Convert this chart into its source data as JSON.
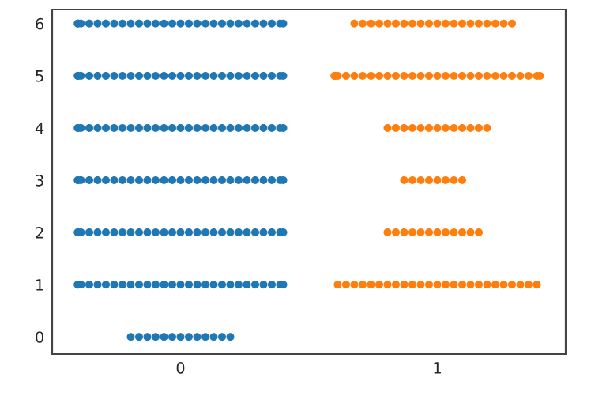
{
  "chart_data": {
    "type": "scatter",
    "categories": [
      "0",
      "1"
    ],
    "series": [
      {
        "color": "#1f77b4",
        "x": [
          "0",
          "0",
          "0",
          "0",
          "0",
          "0",
          "0",
          "0",
          "0",
          "0",
          "0",
          "0",
          "0",
          "0",
          "0",
          "0",
          "0",
          "0",
          "0",
          "0",
          "0",
          "0",
          "0",
          "0",
          "0",
          "0",
          "0",
          "0",
          "0",
          "0",
          "0",
          "0",
          "0",
          "0",
          "0",
          "0",
          "0",
          "0",
          "0",
          "0",
          "0",
          "0",
          "0",
          "0",
          "0",
          "0",
          "0",
          "0",
          "0",
          "0",
          "0",
          "0",
          "0",
          "0",
          "0",
          "0",
          "0",
          "0",
          "0",
          "0",
          "0",
          "0",
          "0",
          "0",
          "0",
          "0",
          "0",
          "0",
          "0",
          "0",
          "0",
          "0",
          "0",
          "0",
          "0",
          "0",
          "0",
          "0",
          "0",
          "0",
          "0",
          "0",
          "0",
          "0",
          "0",
          "0",
          "0",
          "0",
          "0",
          "0",
          "0",
          "0",
          "0",
          "0",
          "0",
          "0",
          "0",
          "0",
          "0",
          "0",
          "0",
          "0",
          "0",
          "0",
          "0",
          "0",
          "0",
          "0",
          "0",
          "0",
          "0",
          "0",
          "0",
          "0",
          "0",
          "0",
          "0",
          "0",
          "0",
          "0",
          "0",
          "0",
          "0",
          "0",
          "0",
          "0",
          "0",
          "0",
          "0",
          "0",
          "0",
          "0",
          "0",
          "0",
          "0",
          "0",
          "0",
          "0",
          "0",
          "0",
          "0",
          "0",
          "0",
          "0",
          "0",
          "0",
          "0",
          "0",
          "0",
          "0",
          "0",
          "0",
          "0",
          "0",
          "0",
          "0",
          "0",
          "0",
          "0",
          "0",
          "0",
          "0",
          "0",
          "0",
          "0",
          "0",
          "0",
          "0",
          "0",
          "0",
          "0",
          "0",
          "0",
          "0",
          "0",
          "0",
          "0",
          "0",
          "0",
          "0",
          "0"
        ],
        "values": [
          0,
          0,
          0,
          0,
          0,
          0,
          0,
          0,
          0,
          0,
          0,
          0,
          0,
          1,
          1,
          1,
          1,
          1,
          1,
          1,
          1,
          1,
          1,
          1,
          1,
          1,
          1,
          1,
          1,
          1,
          1,
          1,
          1,
          1,
          1,
          1,
          1,
          1,
          1,
          1,
          1,
          2,
          2,
          2,
          2,
          2,
          2,
          2,
          2,
          2,
          2,
          2,
          2,
          2,
          2,
          2,
          2,
          2,
          2,
          2,
          2,
          2,
          2,
          2,
          2,
          2,
          2,
          2,
          2,
          3,
          3,
          3,
          3,
          3,
          3,
          3,
          3,
          3,
          3,
          3,
          3,
          3,
          3,
          3,
          3,
          3,
          3,
          3,
          3,
          3,
          3,
          3,
          3,
          3,
          3,
          3,
          3,
          4,
          4,
          4,
          4,
          4,
          4,
          4,
          4,
          4,
          4,
          4,
          4,
          4,
          4,
          4,
          4,
          4,
          4,
          4,
          4,
          4,
          4,
          4,
          4,
          4,
          4,
          4,
          4,
          5,
          5,
          5,
          5,
          5,
          5,
          5,
          5,
          5,
          5,
          5,
          5,
          5,
          5,
          5,
          5,
          5,
          5,
          5,
          5,
          5,
          5,
          5,
          5,
          5,
          5,
          5,
          5,
          6,
          6,
          6,
          6,
          6,
          6,
          6,
          6,
          6,
          6,
          6,
          6,
          6,
          6,
          6,
          6,
          6,
          6,
          6,
          6,
          6,
          6,
          6,
          6,
          6,
          6,
          6,
          6
        ]
      },
      {
        "color": "#ff7f0e",
        "x": [
          "1",
          "1",
          "1",
          "1",
          "1",
          "1",
          "1",
          "1",
          "1",
          "1",
          "1",
          "1",
          "1",
          "1",
          "1",
          "1",
          "1",
          "1",
          "1",
          "1",
          "1",
          "1",
          "1",
          "1",
          "1",
          "1",
          "1",
          "1",
          "1",
          "1",
          "1",
          "1",
          "1",
          "1",
          "1",
          "1",
          "1",
          "1",
          "1",
          "1",
          "1",
          "1",
          "1",
          "1",
          "1",
          "1",
          "1",
          "1",
          "1",
          "1",
          "1",
          "1",
          "1",
          "1",
          "1",
          "1",
          "1",
          "1",
          "1",
          "1",
          "1",
          "1",
          "1",
          "1",
          "1",
          "1",
          "1",
          "1",
          "1",
          "1",
          "1",
          "1",
          "1",
          "1",
          "1",
          "1",
          "1",
          "1",
          "1",
          "1",
          "1",
          "1",
          "1",
          "1",
          "1",
          "1",
          "1",
          "1",
          "1",
          "1",
          "1",
          "1",
          "1",
          "1",
          "1",
          "1",
          "1",
          "1",
          "1",
          "1",
          "1",
          "1",
          "1",
          "1",
          "1",
          "1"
        ],
        "values": [
          1,
          1,
          1,
          1,
          1,
          1,
          1,
          1,
          1,
          1,
          1,
          1,
          1,
          1,
          1,
          1,
          1,
          1,
          1,
          1,
          1,
          1,
          1,
          1,
          1,
          2,
          2,
          2,
          2,
          2,
          2,
          2,
          2,
          2,
          2,
          2,
          2,
          3,
          3,
          3,
          3,
          3,
          3,
          3,
          3,
          4,
          4,
          4,
          4,
          4,
          4,
          4,
          4,
          4,
          4,
          4,
          4,
          4,
          5,
          5,
          5,
          5,
          5,
          5,
          5,
          5,
          5,
          5,
          5,
          5,
          5,
          5,
          5,
          5,
          5,
          5,
          5,
          5,
          5,
          5,
          5,
          5,
          5,
          5,
          5,
          5,
          6,
          6,
          6,
          6,
          6,
          6,
          6,
          6,
          6,
          6,
          6,
          6,
          6,
          6,
          6,
          6,
          6,
          6,
          6,
          6
        ]
      }
    ],
    "ylim": [
      -0.33,
      6.27
    ],
    "yticks": [
      0,
      1,
      2,
      3,
      4,
      5,
      6
    ],
    "marker": "circle",
    "grid": false,
    "legend": false
  }
}
